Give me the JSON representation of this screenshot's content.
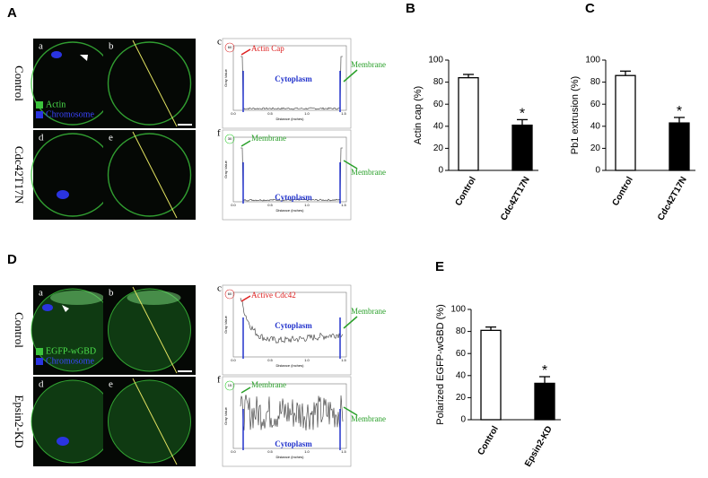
{
  "panel_A": {
    "label": "A",
    "rows": [
      "Control",
      "Cdc42T17N"
    ],
    "images": [
      "a",
      "b",
      "d",
      "e"
    ],
    "legend": [
      "Actin",
      "Chromosome"
    ],
    "profiles": [
      {
        "label": "c",
        "peak": "60",
        "notes": [
          "Actin Cap",
          "Cytoplasm",
          "Membrane"
        ]
      },
      {
        "label": "f",
        "peak": "30",
        "notes": [
          "Membrane",
          "Cytoplasm",
          "Membrane"
        ]
      }
    ]
  },
  "panel_D": {
    "label": "D",
    "rows": [
      "Control",
      "Epsin2-KD"
    ],
    "images": [
      "a",
      "b",
      "d",
      "e"
    ],
    "legend": [
      "EGFP-wGBD",
      "Chromosome"
    ],
    "profiles": [
      {
        "label": "c",
        "peak": "60",
        "notes": [
          "Active Cdc42",
          "Cytoplasm",
          "Membrane"
        ]
      },
      {
        "label": "f",
        "peak": "15",
        "notes": [
          "Membrane",
          "Cytoplasm",
          "Membrane"
        ]
      }
    ]
  },
  "profile_axes": {
    "y_label": "Gray Value",
    "x_label": "Distance (inches)",
    "xticks": [
      "0.0",
      "0.5",
      "1.0",
      "1.5"
    ]
  },
  "chart_data": [
    {
      "type": "bar",
      "label": "B",
      "y_label": "Actin cap (%)",
      "categories": [
        "Control",
        "Cdc42T17N"
      ],
      "values": [
        84,
        41
      ],
      "errors": [
        3,
        5
      ],
      "colors": [
        "#ffffff",
        "#000000"
      ],
      "annotation": "*",
      "ylim": [
        0,
        100
      ],
      "yticks": [
        0,
        20,
        40,
        60,
        80,
        100
      ]
    },
    {
      "type": "bar",
      "label": "C",
      "y_label": "Pb1 extrusion (%)",
      "categories": [
        "Control",
        "Cdc42T17N"
      ],
      "values": [
        86,
        43
      ],
      "errors": [
        4,
        5
      ],
      "colors": [
        "#ffffff",
        "#000000"
      ],
      "annotation": "*",
      "ylim": [
        0,
        100
      ],
      "yticks": [
        0,
        20,
        40,
        60,
        80,
        100
      ]
    },
    {
      "type": "bar",
      "label": "E",
      "y_label": "Polarized EGFP-wGBD (%)",
      "categories": [
        "Control",
        "Epsin2-KD"
      ],
      "values": [
        81,
        33
      ],
      "errors": [
        3,
        6
      ],
      "colors": [
        "#ffffff",
        "#000000"
      ],
      "annotation": "*",
      "ylim": [
        0,
        100
      ],
      "yticks": [
        0,
        20,
        40,
        60,
        80,
        100
      ]
    }
  ]
}
